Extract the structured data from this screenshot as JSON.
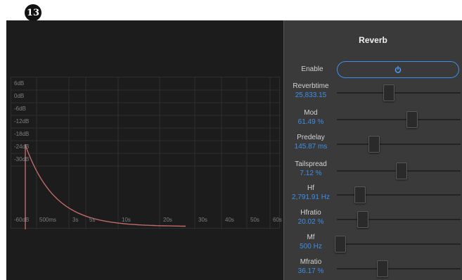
{
  "badge": "13",
  "graph": {
    "db_labels": [
      "6dB",
      "0dB",
      "-6dB",
      "-12dB",
      "-18dB",
      "-24dB",
      "-30dB",
      "-60dB"
    ],
    "time_labels": [
      "500ms",
      "3s",
      "5s",
      "10s",
      "20s",
      "30s",
      "40s",
      "50s",
      "60s"
    ],
    "curve_color": "#c06a6a"
  },
  "panel": {
    "title": "Reverb",
    "enable_label": "Enable",
    "enable_icon": "power-icon",
    "params": [
      {
        "name": "Reverbtime",
        "value": "25,833.15",
        "level": 0.42
      },
      {
        "name": "Mod",
        "value": "61.49 %",
        "level": 0.61
      },
      {
        "name": "Predelay",
        "value": "145.87 ms",
        "level": 0.3
      },
      {
        "name": "Tailspread",
        "value": "7.12 %",
        "level": 0.52
      },
      {
        "name": "Hf",
        "value": "2,791.91 Hz",
        "level": 0.19
      },
      {
        "name": "Hfratio",
        "value": "20.02 %",
        "level": 0.21
      },
      {
        "name": "Mf",
        "value": "500 Hz",
        "level": 0.03
      },
      {
        "name": "Mfratio",
        "value": "36.17 %",
        "level": 0.37
      }
    ]
  }
}
